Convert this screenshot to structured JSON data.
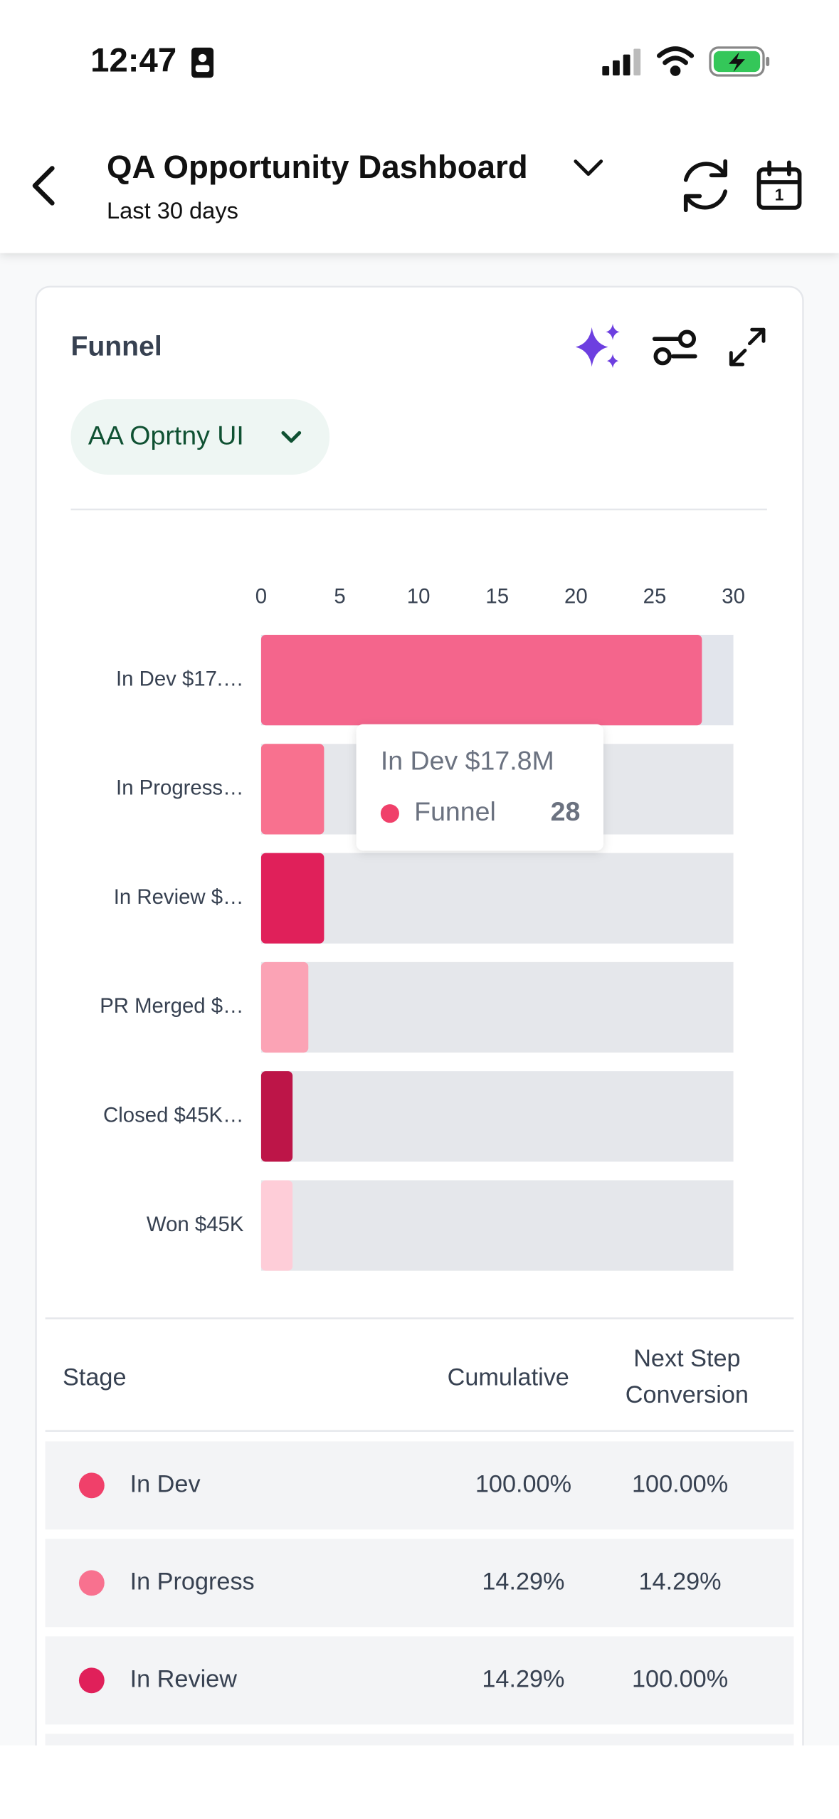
{
  "status_bar": {
    "time": "12:47"
  },
  "header": {
    "title": "QA Opportunity Dashboard",
    "subtitle": "Last 30 days"
  },
  "card": {
    "title": "Funnel",
    "filter": "AA Oprtny UI"
  },
  "chart_data": {
    "type": "bar",
    "orientation": "horizontal",
    "categories": [
      "In Dev $17.…",
      "In Progress…",
      "In Review $…",
      "PR Merged $…",
      "Closed $45K…",
      "Won $45K"
    ],
    "values": [
      28,
      4,
      4,
      3,
      2,
      2
    ],
    "colors": [
      "#f4658c",
      "#f8718f",
      "#e0205a",
      "#fba3b5",
      "#bd1548",
      "#fecdd8"
    ],
    "xlim": [
      0,
      30
    ],
    "xticks": [
      0,
      5,
      10,
      15,
      20,
      25,
      30
    ],
    "tooltip": {
      "title": "In Dev $17.8M",
      "series_name": "Funnel",
      "color": "#f0406a"
    }
  },
  "table": {
    "headers": [
      "Stage",
      "Cumulative",
      [
        "Next Step",
        "Conversion"
      ]
    ],
    "rows": [
      {
        "stage": "In Dev",
        "color": "#f0406a",
        "cumulative": "100.00%",
        "conversion": "100.00%"
      },
      {
        "stage": "In Progress",
        "color": "#f8718f",
        "cumulative": "14.29%",
        "conversion": "14.29%"
      },
      {
        "stage": "In Review",
        "color": "#e0205a",
        "cumulative": "14.29%",
        "conversion": "100.00%"
      }
    ]
  }
}
